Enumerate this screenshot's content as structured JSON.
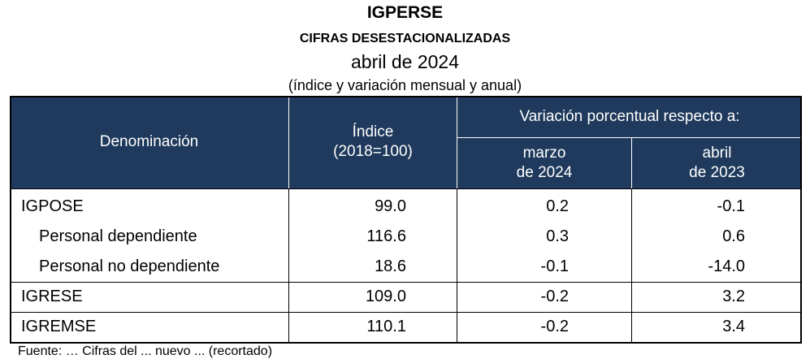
{
  "title": "IGPERSE",
  "subtitle": "CIFRAS DESESTACIONALIZADAS",
  "period": "abril de 2024",
  "note": "(índice y variación mensual y anual)",
  "table": {
    "headers": {
      "denominacion": "Denominación",
      "indice_l1": "Índice",
      "indice_l2": "(2018=100)",
      "variacion": "Variación porcentual respecto a:",
      "marzo_l1": "marzo",
      "marzo_l2": "de 2024",
      "abril_l1": "abril",
      "abril_l2": "de 2023"
    },
    "rows": [
      {
        "name": "IGPOSE",
        "indice": "99.0",
        "marzo": "0.2",
        "abril": "-0.1"
      },
      {
        "name": "Personal dependiente",
        "indice": "116.6",
        "marzo": "0.3",
        "abril": "0.6"
      },
      {
        "name": "Personal no dependiente",
        "indice": "18.6",
        "marzo": "-0.1",
        "abril": "-14.0"
      },
      {
        "name": "IGRESE",
        "indice": "109.0",
        "marzo": "-0.2",
        "abril": "3.2"
      },
      {
        "name": "IGREMSE",
        "indice": "110.1",
        "marzo": "-0.2",
        "abril": "3.4"
      }
    ]
  },
  "footnote": "Fuente: … Cifras del ... nuevo ... (recortado)"
}
